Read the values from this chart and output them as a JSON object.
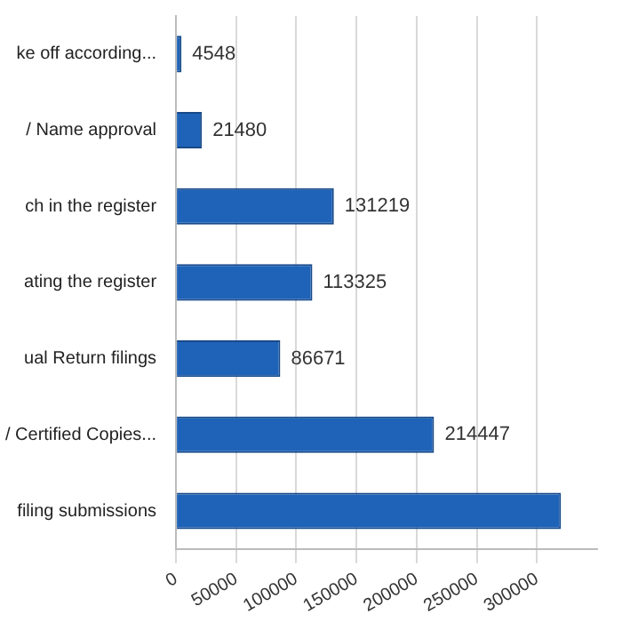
{
  "chart_data": {
    "type": "bar",
    "orientation": "horizontal",
    "categories": [
      "ke off according...",
      "/ Name approval",
      "ch in the register",
      "ating the register",
      "ual Return filings",
      "/ Certified Copies...",
      "filing submissions"
    ],
    "values": [
      4548,
      21480,
      131219,
      113325,
      86671,
      214447,
      320000
    ],
    "value_labels": [
      "4548",
      "21480",
      "131219",
      "113325",
      "86671",
      "214447",
      null
    ],
    "color": "#1f63b8",
    "xlim": [
      0,
      350000
    ],
    "xticks": [
      0,
      50000,
      100000,
      150000,
      200000,
      250000,
      300000
    ],
    "grid": "x",
    "legend": false
  }
}
